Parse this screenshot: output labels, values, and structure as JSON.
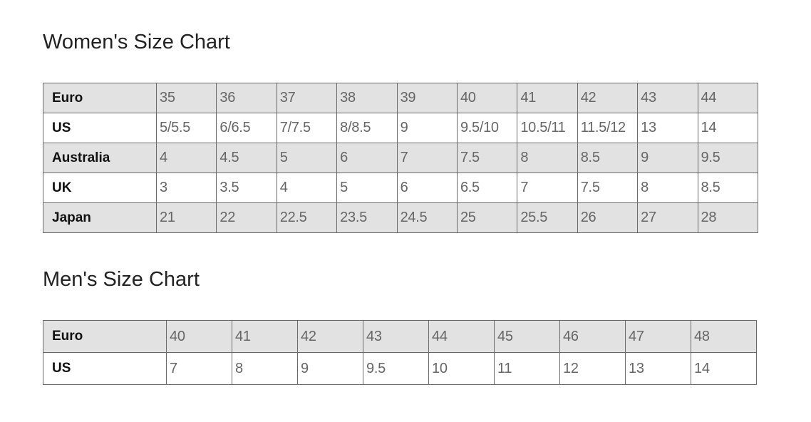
{
  "women": {
    "title": "Women's Size Chart",
    "rows": [
      {
        "label": "Euro",
        "values": [
          "35",
          "36",
          "37",
          "38",
          "39",
          "40",
          "41",
          "42",
          "43",
          "44"
        ]
      },
      {
        "label": "US",
        "values": [
          "5/5.5",
          "6/6.5",
          "7/7.5",
          "8/8.5",
          "9",
          "9.5/10",
          "10.5/11",
          "11.5/12",
          "13",
          "14"
        ]
      },
      {
        "label": "Australia",
        "values": [
          "4",
          "4.5",
          "5",
          "6",
          "7",
          "7.5",
          "8",
          "8.5",
          "9",
          "9.5"
        ]
      },
      {
        "label": "UK",
        "values": [
          "3",
          "3.5",
          "4",
          "5",
          "6",
          "6.5",
          "7",
          "7.5",
          "8",
          "8.5"
        ]
      },
      {
        "label": "Japan",
        "values": [
          "21",
          "22",
          "22.5",
          "23.5",
          "24.5",
          "25",
          "25.5",
          "26",
          "27",
          "28"
        ]
      }
    ]
  },
  "men": {
    "title": "Men's Size Chart",
    "rows": [
      {
        "label": "Euro",
        "values": [
          "40",
          "41",
          "42",
          "43",
          "44",
          "45",
          "46",
          "47",
          "48"
        ]
      },
      {
        "label": "US",
        "values": [
          "7",
          "8",
          "9",
          "9.5",
          "10",
          "11",
          "12",
          "13",
          "14"
        ]
      }
    ]
  },
  "colors": {
    "shaded_row": "#e2e2e2",
    "border": "#6a6a6a"
  }
}
